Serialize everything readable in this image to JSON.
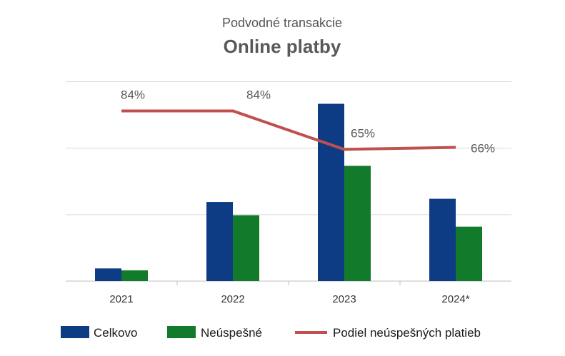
{
  "chart_data": {
    "type": "bar",
    "subtitle": "Podvodné transakcie",
    "title": "Online platby",
    "categories": [
      "2021",
      "2022",
      "2023",
      "2024*"
    ],
    "series": [
      {
        "name": "Celkovo",
        "type": "bar",
        "color": "#0d3c84",
        "values": [
          2.0,
          12.5,
          28.0,
          13.0
        ]
      },
      {
        "name": "Neúspešné",
        "type": "bar",
        "color": "#127a2b",
        "values": [
          1.7,
          10.4,
          18.2,
          8.6
        ]
      },
      {
        "name": "Podiel neúspešných platieb",
        "type": "line",
        "color": "#c0504d",
        "values": [
          84,
          84,
          65,
          66
        ],
        "labels": [
          "84%",
          "84%",
          "65%",
          "66%"
        ]
      }
    ],
    "ylim": [
      0,
      32
    ],
    "y2lim": [
      0,
      100
    ],
    "grid": true,
    "legend": "bottom"
  }
}
